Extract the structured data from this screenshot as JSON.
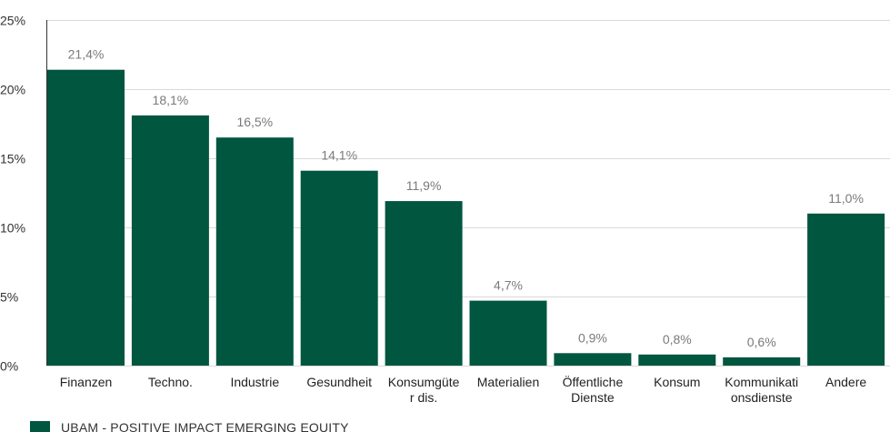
{
  "chart_data": {
    "type": "bar",
    "categories": [
      [
        "Finanzen"
      ],
      [
        "Techno."
      ],
      [
        "Industrie"
      ],
      [
        "Gesundheit"
      ],
      [
        "Konsumgüte",
        "r dis."
      ],
      [
        "Materialien"
      ],
      [
        "Öffentliche",
        "Dienste"
      ],
      [
        "Konsum"
      ],
      [
        "Kommunikati",
        "onsdienste"
      ],
      [
        "Andere"
      ]
    ],
    "series": [
      {
        "name": "UBAM - POSITIVE IMPACT EMERGING EQUITY",
        "color": "#00563f",
        "values": [
          21.4,
          18.1,
          16.5,
          14.1,
          11.9,
          4.7,
          0.9,
          0.8,
          0.6,
          11.0
        ],
        "data_labels": [
          "21,4%",
          "18,1%",
          "16,5%",
          "14,1%",
          "11,9%",
          "4,7%",
          "0,9%",
          "0,8%",
          "0,6%",
          "11,0%"
        ]
      }
    ],
    "ylim": [
      0,
      25
    ],
    "yticks": [
      0,
      5,
      10,
      15,
      20,
      25
    ],
    "ytick_labels": [
      "0%",
      "5%",
      "10%",
      "15%",
      "20%",
      "25%"
    ],
    "grid": true,
    "legend": "bottom-left"
  }
}
